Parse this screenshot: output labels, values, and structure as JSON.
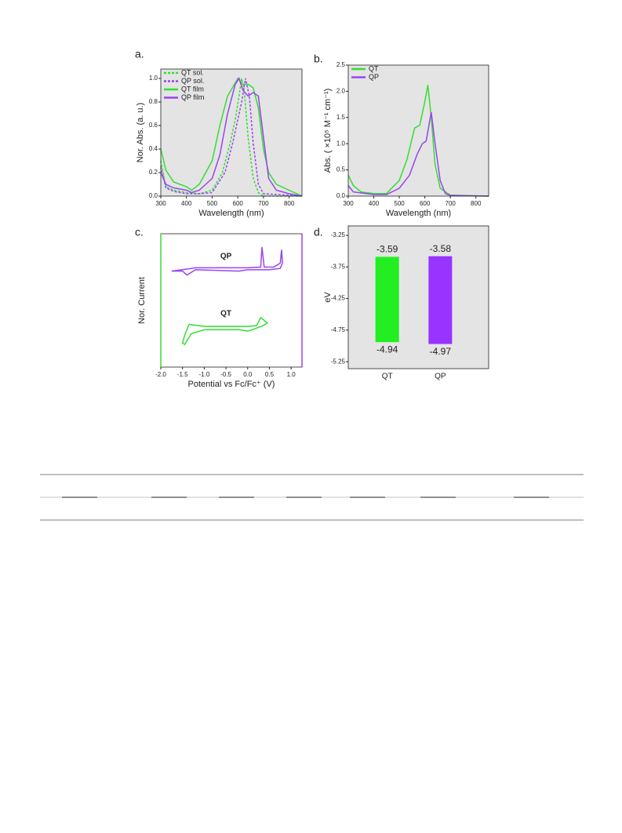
{
  "chart_data": [
    {
      "type": "line",
      "panel": "a.",
      "x_label": "Wavelength (nm)",
      "y_label": "Nor. Abs. (a. u.)",
      "xlim": [
        300,
        850
      ],
      "ylim": [
        0,
        1.08
      ],
      "xticks": [
        300,
        400,
        500,
        600,
        700,
        800
      ],
      "yticks": [
        {
          "value": 0,
          "label": "0.0"
        },
        0.2,
        0.4,
        0.6,
        0.8,
        {
          "value": 1,
          "label": "1.0"
        }
      ],
      "background": "#e4e4e4",
      "legend": "top-left",
      "series": [
        {
          "name": "QT sol.",
          "color": "#33dd33",
          "dash": true,
          "x": [
            300,
            320,
            350,
            400,
            450,
            500,
            540,
            570,
            590,
            605,
            615,
            625,
            640,
            660,
            680,
            700,
            850
          ],
          "values": [
            0.3,
            0.08,
            0.05,
            0.03,
            0.02,
            0.05,
            0.2,
            0.45,
            0.65,
            0.85,
            1.0,
            0.9,
            0.5,
            0.15,
            0.03,
            0,
            0
          ]
        },
        {
          "name": "QP sol.",
          "color": "#9944ee",
          "dash": true,
          "x": [
            300,
            320,
            350,
            400,
            450,
            500,
            550,
            580,
            600,
            615,
            630,
            645,
            660,
            680,
            700,
            850
          ],
          "values": [
            0.25,
            0.07,
            0.04,
            0.02,
            0.02,
            0.03,
            0.2,
            0.45,
            0.65,
            0.8,
            1.0,
            0.85,
            0.45,
            0.1,
            0.02,
            0
          ]
        },
        {
          "name": "QT film",
          "color": "#33dd33",
          "dash": false,
          "x": [
            300,
            320,
            350,
            400,
            420,
            450,
            500,
            530,
            560,
            600,
            620,
            640,
            660,
            680,
            700,
            720,
            750,
            800,
            850
          ],
          "values": [
            0.4,
            0.22,
            0.12,
            0.08,
            0.05,
            0.1,
            0.3,
            0.6,
            0.85,
            1.0,
            0.95,
            0.95,
            0.92,
            0.75,
            0.4,
            0.2,
            0.1,
            0.05,
            0
          ]
        },
        {
          "name": "QP film",
          "color": "#9944ee",
          "dash": false,
          "x": [
            300,
            320,
            350,
            400,
            420,
            450,
            500,
            530,
            560,
            590,
            605,
            620,
            640,
            660,
            680,
            700,
            720,
            750,
            800,
            850
          ],
          "values": [
            0.2,
            0.1,
            0.07,
            0.05,
            0.03,
            0.05,
            0.15,
            0.35,
            0.7,
            0.95,
            1.0,
            0.9,
            0.85,
            0.88,
            0.85,
            0.5,
            0.15,
            0.05,
            0.02,
            0
          ]
        }
      ]
    },
    {
      "type": "line",
      "panel": "b.",
      "x_label": "Wavelength (nm)",
      "y_label": "Abs. ( ×10⁵ M⁻¹ cm⁻¹)",
      "xlim": [
        300,
        850
      ],
      "ylim": [
        0,
        2.5
      ],
      "xticks": [
        300,
        400,
        500,
        600,
        700,
        800
      ],
      "yticks": [
        {
          "value": 0,
          "label": "0.0"
        },
        0.5,
        {
          "value": 1,
          "label": "1.0"
        },
        1.5,
        {
          "value": 2,
          "label": "2.0"
        },
        2.5
      ],
      "background": "#e4e4e4",
      "legend": "top-left",
      "series": [
        {
          "name": "QT",
          "color": "#33dd33",
          "dash": false,
          "x": [
            300,
            320,
            350,
            400,
            450,
            500,
            530,
            560,
            580,
            600,
            612,
            625,
            640,
            660,
            700,
            850
          ],
          "values": [
            0.4,
            0.2,
            0.08,
            0.05,
            0.05,
            0.3,
            0.7,
            1.3,
            1.35,
            1.8,
            2.12,
            1.5,
            0.6,
            0.15,
            0.02,
            0
          ]
        },
        {
          "name": "QP",
          "color": "#9944ee",
          "dash": false,
          "x": [
            300,
            320,
            400,
            450,
            500,
            540,
            570,
            590,
            605,
            625,
            640,
            660,
            680,
            700,
            850
          ],
          "values": [
            0.2,
            0.08,
            0.03,
            0.03,
            0.15,
            0.4,
            0.8,
            1.0,
            1.05,
            1.6,
            1.0,
            0.3,
            0.05,
            0.01,
            0
          ]
        }
      ]
    },
    {
      "type": "line",
      "panel": "c.",
      "x_label": "Potential vs Fc/Fc⁺ (V)",
      "y_label": "Nor. Current",
      "xlim": [
        -2.0,
        1.25
      ],
      "ylim": [
        0,
        1
      ],
      "xticks": [
        {
          "value": -2,
          "label": "-2.0"
        },
        -1.5,
        {
          "value": -1,
          "label": "-1.0"
        },
        -0.5,
        {
          "value": 0,
          "label": "0.0"
        },
        0.5,
        {
          "value": 1,
          "label": "1.0"
        }
      ],
      "background": "#ffffff",
      "left_axis_color": "#33dd33",
      "right_axis_color": "#9944ee",
      "annotations": [
        "QP",
        "QT"
      ],
      "series": [
        {
          "color": "#9944ee",
          "dash": false,
          "x": [
            -1.75,
            -1.3,
            -1.2,
            0,
            0.3,
            0.33,
            0.38,
            0.6,
            0.75,
            0.78,
            0.8,
            0.75,
            0.5,
            0,
            -0.2,
            -1.2,
            -1.4,
            -1.5,
            -1.75
          ],
          "values": [
            0.72,
            0.74,
            0.745,
            0.745,
            0.75,
            0.9,
            0.75,
            0.75,
            0.78,
            0.88,
            0.78,
            0.74,
            0.73,
            0.73,
            0.72,
            0.73,
            0.69,
            0.72,
            0.72
          ]
        },
        {
          "color": "#33dd33",
          "dash": false,
          "x": [
            -1.35,
            -1.0,
            0,
            0.2,
            0.3,
            0.35,
            0.45,
            0.35,
            0.1,
            0,
            -0.2,
            -1.0,
            -1.3,
            -1.45,
            -1.5,
            -1.45,
            -1.35
          ],
          "values": [
            0.32,
            0.305,
            0.305,
            0.31,
            0.37,
            0.36,
            0.33,
            0.31,
            0.28,
            0.27,
            0.28,
            0.28,
            0.25,
            0.17,
            0.18,
            0.24,
            0.32
          ]
        }
      ]
    },
    {
      "type": "floating-bar",
      "panel": "d.",
      "y_label": "eV",
      "ylim": [
        -5.36,
        -3.1
      ],
      "yticks": [
        -3.25,
        -3.75,
        -4.25,
        -4.75,
        -5.25
      ],
      "background": "#e4e4e4",
      "categories": [
        "QT",
        "QP"
      ],
      "colors": [
        "#22ee22",
        "#9933ff"
      ],
      "lumo": [
        -3.59,
        -3.58
      ],
      "homo": [
        -4.94,
        -4.97
      ]
    }
  ]
}
